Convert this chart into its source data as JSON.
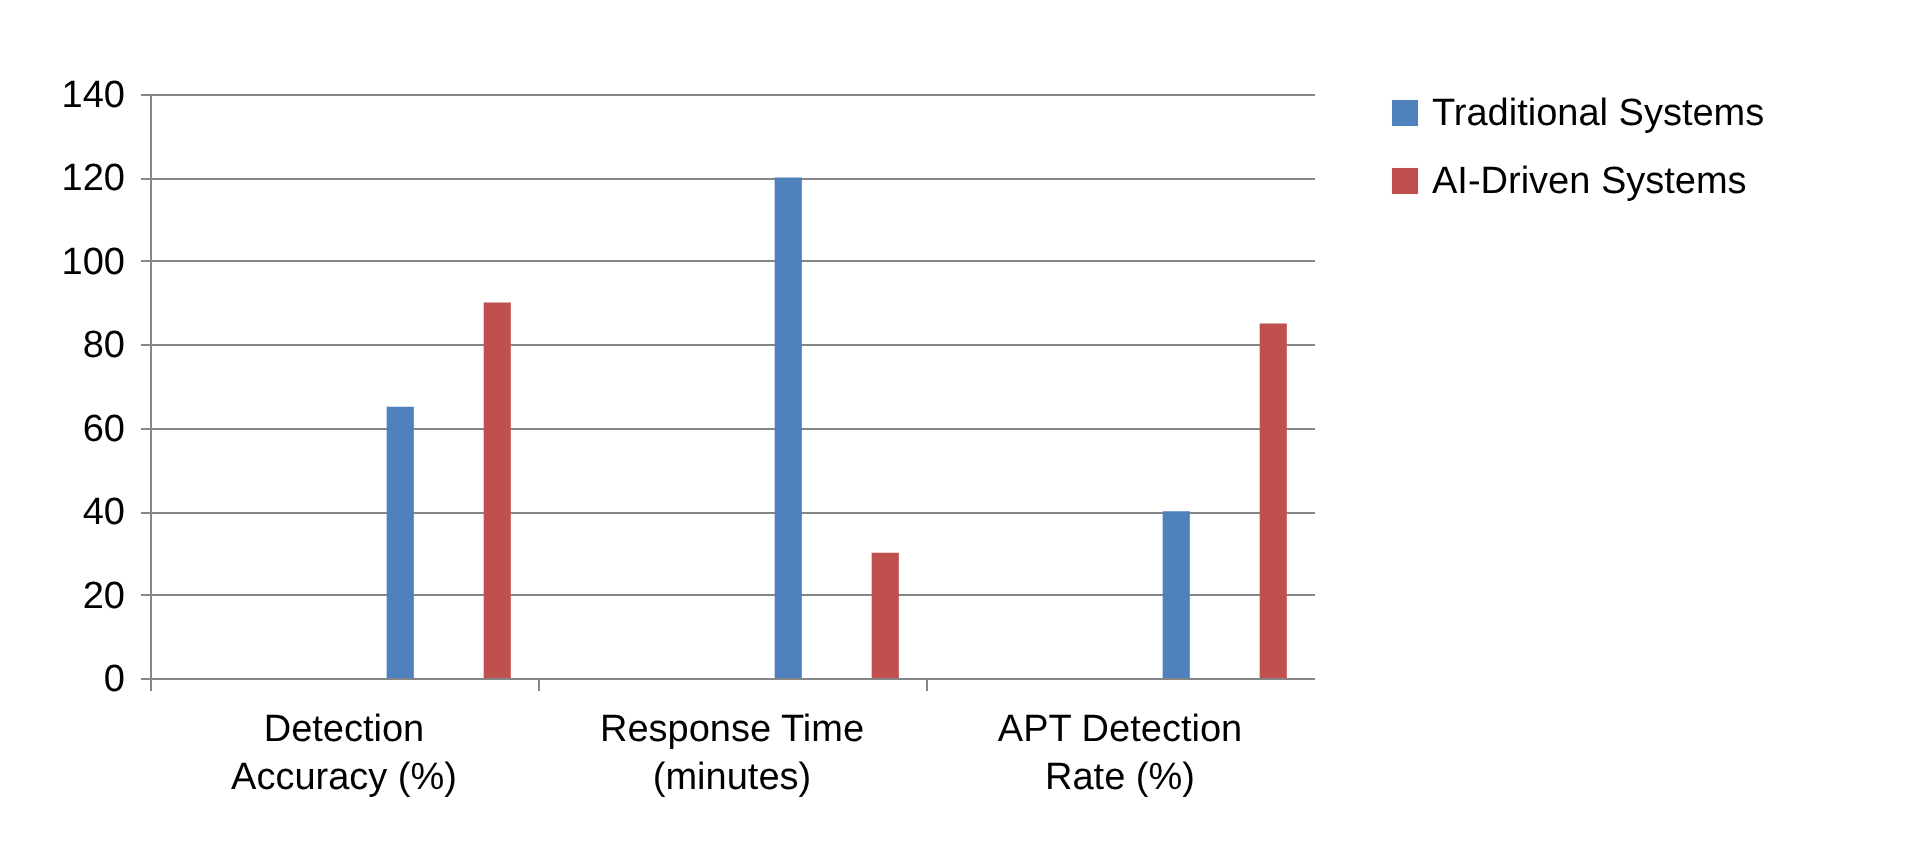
{
  "chart_data": {
    "type": "bar",
    "categories": [
      "Detection Accuracy (%)",
      "Response Time (minutes)",
      "APT Detection Rate (%)"
    ],
    "series": [
      {
        "name": "Traditional Systems",
        "color": "#4f81bd",
        "values": [
          65,
          120,
          40
        ]
      },
      {
        "name": "AI-Driven Systems",
        "color": "#c0504d",
        "values": [
          90,
          30,
          85
        ]
      }
    ],
    "ylim": [
      0,
      140
    ],
    "yticks": [
      0,
      20,
      40,
      60,
      80,
      100,
      120,
      140
    ],
    "grid": "y",
    "legend": "right"
  }
}
